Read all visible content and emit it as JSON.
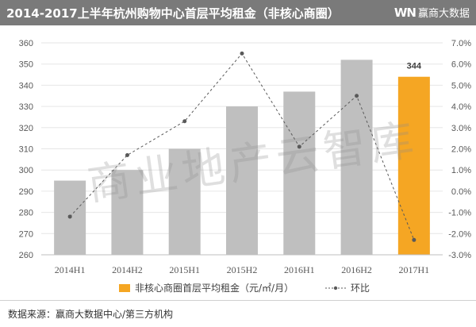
{
  "header": {
    "title": "2014-2017上半年杭州购物中心首层平均租金（非核心商圈）",
    "brand_logo": "WN",
    "brand_name": "赢商大数据"
  },
  "watermark": "商业地产云智库",
  "source": "数据来源：赢商大数据中心/第三方机构",
  "colors": {
    "bar": "#bfbfbf",
    "highlight_bar": "#f5a623",
    "line": "#595959",
    "header_bg": "#7a7a7a"
  },
  "chart_data": {
    "type": "bar",
    "categories": [
      "2014H1",
      "2014H2",
      "2015H1",
      "2015H2",
      "2016H1",
      "2016H2",
      "2017H1"
    ],
    "series": [
      {
        "name": "非核心商圈首层平均租金（元/㎡/月）",
        "type": "bar",
        "axis": "left",
        "values": [
          295,
          300,
          310,
          330,
          337,
          352,
          344
        ],
        "highlight_index": 6
      },
      {
        "name": "环比",
        "type": "line",
        "axis": "right",
        "values": [
          -1.2,
          1.7,
          3.3,
          6.5,
          2.1,
          4.5,
          -2.3
        ]
      }
    ],
    "data_labels": [
      {
        "category": "2017H1",
        "text": "344"
      }
    ],
    "y_left": {
      "min": 260,
      "max": 360,
      "step": 10,
      "ticks": [
        "260",
        "270",
        "280",
        "290",
        "300",
        "310",
        "320",
        "330",
        "340",
        "350",
        "360"
      ]
    },
    "y_right": {
      "min": -3.0,
      "max": 7.0,
      "step": 1.0,
      "ticks": [
        "-3.0%",
        "-2.0%",
        "-1.0%",
        "0.0%",
        "1.0%",
        "2.0%",
        "3.0%",
        "4.0%",
        "5.0%",
        "6.0%",
        "7.0%"
      ]
    },
    "grid": true,
    "legend": "bottom"
  }
}
